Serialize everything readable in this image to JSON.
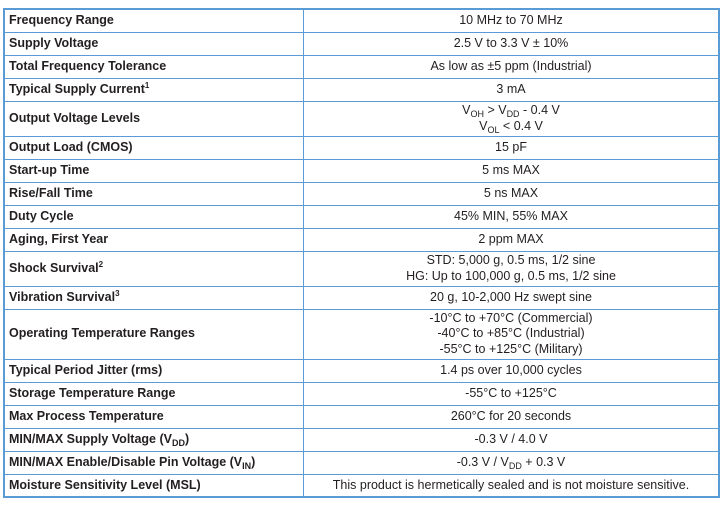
{
  "border_color": "#5b9bd5",
  "rows": [
    {
      "param": [
        {
          "t": "Frequency Range"
        }
      ],
      "value": [
        [
          {
            "t": "10 MHz to 70 MHz"
          }
        ]
      ]
    },
    {
      "param": [
        {
          "t": "Supply Voltage"
        }
      ],
      "value": [
        [
          {
            "t": "2.5 V to 3.3 V ± 10%"
          }
        ]
      ]
    },
    {
      "param": [
        {
          "t": "Total Frequency Tolerance"
        }
      ],
      "value": [
        [
          {
            "t": "As low as ±5 ppm (Industrial)"
          }
        ]
      ]
    },
    {
      "param": [
        {
          "t": "Typical Supply Current"
        },
        {
          "t": "1",
          "sup": true
        }
      ],
      "value": [
        [
          {
            "t": "3 mA"
          }
        ]
      ]
    },
    {
      "param": [
        {
          "t": "Output Voltage Levels"
        }
      ],
      "value": [
        [
          {
            "t": "V"
          },
          {
            "t": "OH",
            "sub": true
          },
          {
            "t": " > V"
          },
          {
            "t": "DD",
            "sub": true
          },
          {
            "t": " - 0.4 V"
          }
        ],
        [
          {
            "t": "V"
          },
          {
            "t": "OL",
            "sub": true
          },
          {
            "t": " < 0.4 V"
          }
        ]
      ]
    },
    {
      "param": [
        {
          "t": "Output Load (CMOS)"
        }
      ],
      "value": [
        [
          {
            "t": "15 pF"
          }
        ]
      ]
    },
    {
      "param": [
        {
          "t": "Start-up Time"
        }
      ],
      "value": [
        [
          {
            "t": "5 ms MAX"
          }
        ]
      ]
    },
    {
      "param": [
        {
          "t": "Rise/Fall Time"
        }
      ],
      "value": [
        [
          {
            "t": "5 ns MAX"
          }
        ]
      ]
    },
    {
      "param": [
        {
          "t": "Duty Cycle"
        }
      ],
      "value": [
        [
          {
            "t": "45% MIN, 55% MAX"
          }
        ]
      ]
    },
    {
      "param": [
        {
          "t": "Aging, First Year"
        }
      ],
      "value": [
        [
          {
            "t": "2 ppm MAX"
          }
        ]
      ]
    },
    {
      "param": [
        {
          "t": "Shock Survival"
        },
        {
          "t": "2",
          "sup": true
        }
      ],
      "value": [
        [
          {
            "t": "STD: 5,000 g, 0.5 ms, 1/2 sine"
          }
        ],
        [
          {
            "t": "HG: Up to 100,000 g, 0.5 ms, 1/2 sine"
          }
        ]
      ]
    },
    {
      "param": [
        {
          "t": "Vibration Survival"
        },
        {
          "t": "3",
          "sup": true
        }
      ],
      "value": [
        [
          {
            "t": "20 g, 10-2,000 Hz swept sine"
          }
        ]
      ]
    },
    {
      "param": [
        {
          "t": "Operating Temperature Ranges"
        }
      ],
      "value": [
        [
          {
            "t": "-10°C to +70°C (Commercial)"
          }
        ],
        [
          {
            "t": "-40°C to +85°C (Industrial)"
          }
        ],
        [
          {
            "t": "-55°C to +125°C (Military)"
          }
        ]
      ]
    },
    {
      "param": [
        {
          "t": "Typical Period Jitter (rms)"
        }
      ],
      "value": [
        [
          {
            "t": "1.4 ps over 10,000 cycles"
          }
        ]
      ]
    },
    {
      "param": [
        {
          "t": "Storage Temperature Range"
        }
      ],
      "value": [
        [
          {
            "t": "-55°C to +125°C"
          }
        ]
      ]
    },
    {
      "param": [
        {
          "t": "Max Process Temperature"
        }
      ],
      "value": [
        [
          {
            "t": "260°C for 20 seconds"
          }
        ]
      ]
    },
    {
      "param": [
        {
          "t": "MIN/MAX Supply Voltage (V"
        },
        {
          "t": "DD",
          "sub": true
        },
        {
          "t": ")"
        }
      ],
      "value": [
        [
          {
            "t": "-0.3 V / 4.0 V"
          }
        ]
      ]
    },
    {
      "param": [
        {
          "t": "MIN/MAX Enable/Disable Pin Voltage (V"
        },
        {
          "t": "IN",
          "sub": true
        },
        {
          "t": ")"
        }
      ],
      "value": [
        [
          {
            "t": "-0.3 V / V"
          },
          {
            "t": "DD",
            "sub": true
          },
          {
            "t": " + 0.3 V"
          }
        ]
      ]
    },
    {
      "param": [
        {
          "t": "Moisture Sensitivity Level (MSL)"
        }
      ],
      "value": [
        [
          {
            "t": "This product is hermetically sealed and is not moisture sensitive."
          }
        ]
      ]
    }
  ]
}
